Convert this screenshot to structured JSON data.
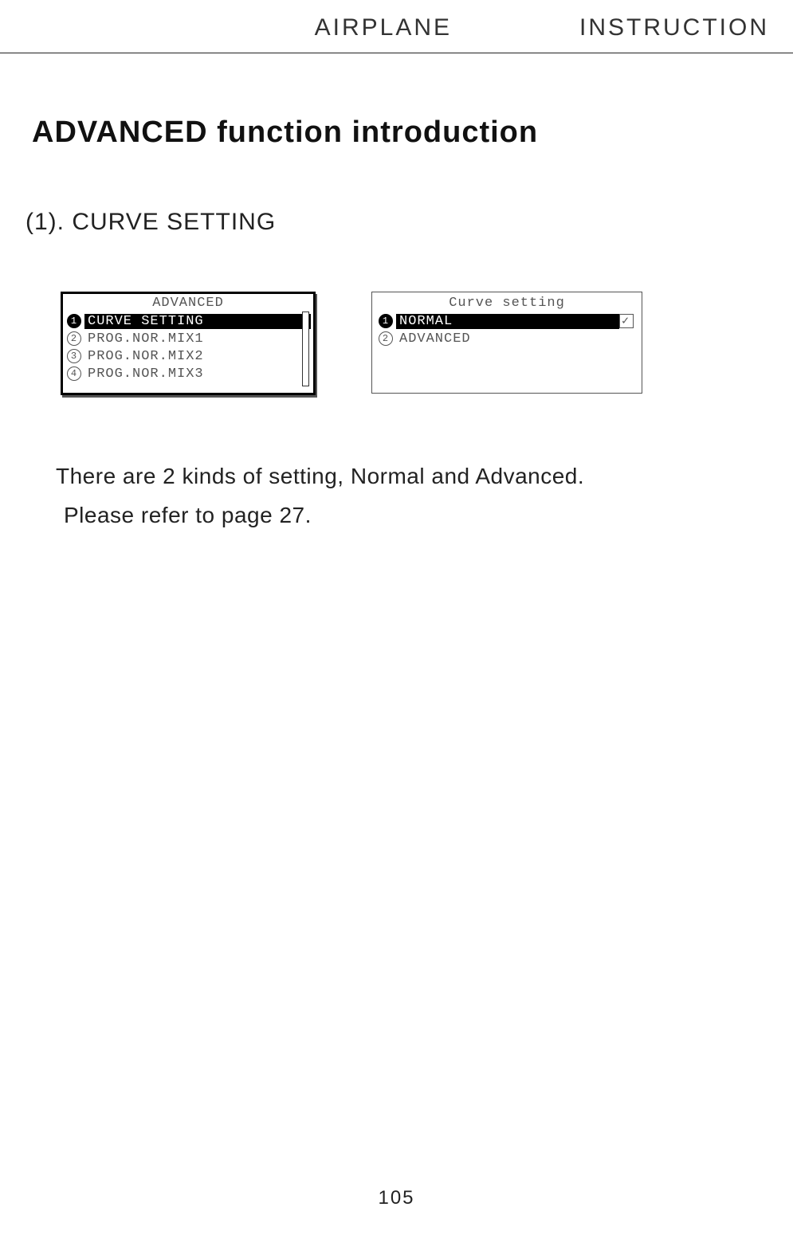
{
  "header": {
    "left": "AIRPLANE",
    "right": "INSTRUCTION"
  },
  "title": "ADVANCED function introduction",
  "subtitle": "(1). CURVE SETTING",
  "screen_left": {
    "title": "ADVANCED",
    "items": [
      {
        "num": "1",
        "label": "CURVE SETTING",
        "selected": true
      },
      {
        "num": "2",
        "label": "PROG.NOR.MIX1",
        "selected": false
      },
      {
        "num": "3",
        "label": "PROG.NOR.MIX2",
        "selected": false
      },
      {
        "num": "4",
        "label": "PROG.NOR.MIX3",
        "selected": false
      }
    ]
  },
  "screen_right": {
    "title": "Curve setting",
    "items": [
      {
        "num": "1",
        "label": "NORMAL",
        "selected": true,
        "checked": true
      },
      {
        "num": "2",
        "label": "ADVANCED",
        "selected": false
      }
    ]
  },
  "body": {
    "line1": "There are 2 kinds of setting, Normal and Advanced.",
    "line2": "Please refer to page 27."
  },
  "page_number": "105",
  "colors": {
    "text": "#1a1a1a",
    "muted": "#555555",
    "border": "#222222",
    "background": "#ffffff",
    "inverse_bg": "#000000",
    "inverse_text": "#ffffff"
  }
}
